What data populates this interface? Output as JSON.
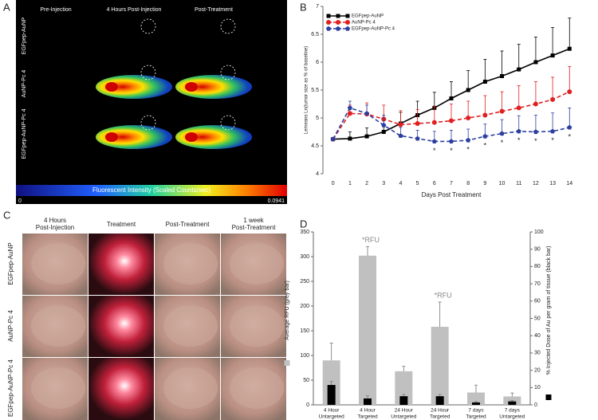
{
  "panel_a": {
    "panel_label": "A",
    "columns": [
      "Pre-Injection",
      "4 Hours Post-Injection",
      "Post-Treatment"
    ],
    "rows": [
      "EGFpep-AuNP",
      "AuNP-Pc 4",
      "EGFpep-AuNP-Pc 4"
    ],
    "colorbar_label": "Fluorescent Intensity (Scaled Counts/sec)",
    "colorbar_min": "0",
    "colorbar_max": "0.0941"
  },
  "panel_c": {
    "panel_label": "C",
    "columns": [
      [
        "4 Hours",
        "Post-Injection"
      ],
      [
        "Treatment"
      ],
      [
        "Post-Treatment"
      ],
      [
        "1 week",
        "Post-Treatment"
      ]
    ],
    "rows": [
      "EGFpep-AuNP",
      "AuNP-Pc 4",
      "EGFpep-AuNP-Pc 4"
    ]
  },
  "chart_data": [
    {
      "type": "line",
      "panel_label": "B",
      "x_label": "Days Post Treatment",
      "y_label": "Lemeans Ln(tumor size as % of baseline)",
      "x": [
        0,
        1,
        2,
        3,
        4,
        5,
        6,
        7,
        8,
        9,
        10,
        11,
        12,
        13,
        14
      ],
      "xlim": [
        -0.6,
        14.6
      ],
      "xticks": [
        0,
        1,
        2,
        3,
        4,
        5,
        6,
        7,
        8,
        9,
        10,
        11,
        12,
        13,
        14
      ],
      "ylim": [
        4,
        7
      ],
      "yticks": [
        4,
        4.5,
        5,
        5.5,
        6,
        6.5,
        7
      ],
      "series": [
        {
          "name": "EGFpep-AuNP",
          "color": "#000000",
          "marker": "square",
          "dashed": false,
          "values": [
            4.62,
            4.63,
            4.67,
            4.75,
            4.9,
            5.05,
            5.18,
            5.35,
            5.5,
            5.65,
            5.75,
            5.87,
            6.0,
            6.12,
            6.24
          ],
          "errors": [
            0,
            0.12,
            0.15,
            0.2,
            0.2,
            0.25,
            0.28,
            0.3,
            0.35,
            0.4,
            0.45,
            0.45,
            0.45,
            0.5,
            0.55
          ]
        },
        {
          "name": "AuNP-Pc 4",
          "color": "#e02020",
          "marker": "circle",
          "dashed": true,
          "values": [
            4.62,
            5.08,
            5.07,
            4.98,
            4.88,
            4.9,
            4.92,
            4.95,
            5.0,
            5.05,
            5.12,
            5.18,
            5.25,
            5.33,
            5.47
          ],
          "errors": [
            0,
            0.15,
            0.2,
            0.25,
            0.25,
            0.25,
            0.28,
            0.3,
            0.3,
            0.35,
            0.35,
            0.4,
            0.4,
            0.4,
            0.45
          ]
        },
        {
          "name": "EGFpep-AuNP-Pc 4",
          "color": "#2b3fa0",
          "marker": "pentagon",
          "dashed": true,
          "values": [
            4.62,
            5.18,
            5.08,
            4.87,
            4.68,
            4.63,
            4.58,
            4.58,
            4.6,
            4.67,
            4.72,
            4.76,
            4.75,
            4.76,
            4.83
          ],
          "errors": [
            0,
            0.12,
            0.15,
            0.18,
            0.15,
            0.15,
            0.18,
            0.2,
            0.2,
            0.22,
            0.25,
            0.28,
            0.3,
            0.33,
            0.35
          ]
        }
      ],
      "annotations": [
        {
          "x": 6,
          "text": "*"
        },
        {
          "x": 7,
          "text": "*"
        },
        {
          "x": 8,
          "text": "*"
        },
        {
          "x": 9,
          "text": "*"
        },
        {
          "x": 10,
          "text": "*"
        },
        {
          "x": 11,
          "text": "*"
        },
        {
          "x": 12,
          "text": "*"
        },
        {
          "x": 13,
          "text": "*"
        },
        {
          "x": 14,
          "text": "*"
        }
      ]
    },
    {
      "type": "bar",
      "panel_label": "D",
      "categories": [
        [
          "4 Hour",
          "Untargeted"
        ],
        [
          "4 Hour",
          "Targeted"
        ],
        [
          "24 Hour",
          "Untargeted"
        ],
        [
          "24 Hour",
          "Targeted"
        ],
        [
          "7 days",
          "Targeted"
        ],
        [
          "7 days",
          "Untargeted"
        ]
      ],
      "ylim": [
        0,
        350
      ],
      "yticks": [
        0,
        50,
        100,
        150,
        200,
        250,
        300,
        350
      ],
      "y2lim": [
        0,
        100
      ],
      "y2ticks": [
        0,
        10,
        20,
        30,
        40,
        50,
        60,
        70,
        80,
        90,
        100
      ],
      "series": [
        {
          "name": "Average RFU (grey bar)",
          "color": "#c0c0c0",
          "values": [
            90,
            302,
            68,
            158,
            25,
            17
          ],
          "errors": [
            35,
            18,
            10,
            50,
            15,
            7
          ],
          "annotations": [
            null,
            "*RFU",
            null,
            "*RFU",
            null,
            null
          ]
        },
        {
          "name": "% Injected Dose of Au per gram of tissue (black bar)",
          "color": "#000000",
          "axis": "y2",
          "values": [
            11.5,
            3.7,
            5,
            5,
            1.4,
            2
          ],
          "errors": [
            2,
            1.5,
            1,
            1,
            0.5,
            0.5
          ]
        }
      ]
    }
  ]
}
